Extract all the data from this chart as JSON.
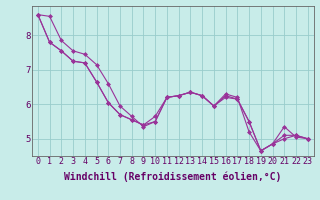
{
  "title": "",
  "xlabel": "Windchill (Refroidissement éolien,°C)",
  "ylabel": "",
  "background_color": "#c8ece9",
  "line_color": "#993399",
  "grid_color": "#99cccc",
  "xlim": [
    -0.5,
    23.5
  ],
  "ylim": [
    4.5,
    8.85
  ],
  "xticks": [
    0,
    1,
    2,
    3,
    4,
    5,
    6,
    7,
    8,
    9,
    10,
    11,
    12,
    13,
    14,
    15,
    16,
    17,
    18,
    19,
    20,
    21,
    22,
    23
  ],
  "yticks": [
    5,
    6,
    7,
    8
  ],
  "series": [
    [
      8.6,
      7.8,
      7.55,
      7.25,
      7.2,
      6.65,
      6.05,
      5.7,
      5.55,
      5.4,
      5.5,
      6.2,
      6.25,
      6.35,
      6.25,
      5.95,
      6.3,
      6.2,
      5.2,
      4.65,
      4.85,
      5.35,
      5.05,
      5.0
    ],
    [
      8.6,
      7.8,
      7.55,
      7.25,
      7.2,
      6.65,
      6.05,
      5.7,
      5.55,
      5.4,
      5.65,
      6.2,
      6.25,
      6.35,
      6.25,
      5.95,
      6.2,
      6.15,
      5.5,
      4.65,
      4.85,
      5.0,
      5.1,
      5.0
    ],
    [
      8.6,
      8.55,
      7.85,
      7.55,
      7.45,
      7.15,
      6.6,
      5.95,
      5.65,
      5.35,
      5.5,
      6.2,
      6.25,
      6.35,
      6.25,
      5.95,
      6.25,
      6.15,
      5.5,
      4.65,
      4.85,
      5.1,
      5.1,
      5.0
    ]
  ],
  "xlabel_fontsize": 7,
  "tick_fontsize": 6,
  "axis_color": "#660066",
  "spine_color": "#666666",
  "fig_width": 3.2,
  "fig_height": 2.0,
  "dpi": 100
}
